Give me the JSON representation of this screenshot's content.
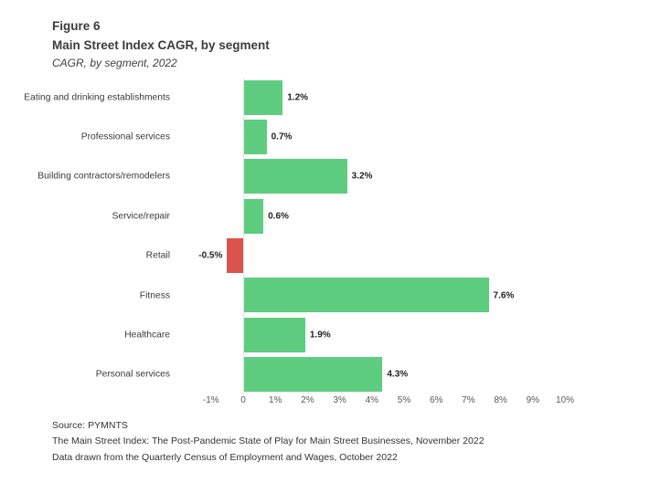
{
  "header": {
    "figure_label": "Figure 6",
    "title": "Main Street Index CAGR, by segment",
    "subtitle": "CAGR, by segment, 2022"
  },
  "chart_data": {
    "type": "bar",
    "orientation": "horizontal",
    "title": "Main Street Index CAGR, by segment",
    "subtitle": "CAGR, by segment, 2022",
    "categories": [
      "Eating and drinking establishments",
      "Professional services",
      "Building contractors/remodelers",
      "Service/repair",
      "Retail",
      "Fitness",
      "Healthcare",
      "Personal services"
    ],
    "values": [
      1.2,
      0.7,
      3.2,
      0.6,
      -0.5,
      7.6,
      1.9,
      4.3
    ],
    "value_labels": [
      "1.2%",
      "0.7%",
      "3.2%",
      "0.6%",
      "-0.5%",
      "7.6%",
      "1.9%",
      "4.3%"
    ],
    "x_ticks": [
      {
        "value": -1,
        "label": "-1%"
      },
      {
        "value": 0,
        "label": "0"
      },
      {
        "value": 1,
        "label": "1%"
      },
      {
        "value": 2,
        "label": "2%"
      },
      {
        "value": 3,
        "label": "3%"
      },
      {
        "value": 4,
        "label": "4%"
      },
      {
        "value": 5,
        "label": "5%"
      },
      {
        "value": 6,
        "label": "6%"
      },
      {
        "value": 7,
        "label": "7%"
      },
      {
        "value": 8,
        "label": "8%"
      },
      {
        "value": 9,
        "label": "9%"
      },
      {
        "value": 10,
        "label": "10%"
      }
    ],
    "xlim": [
      -1,
      10
    ],
    "grid": false,
    "positive_color": "#5ecd80",
    "negative_color": "#d9534f"
  },
  "footer": {
    "lines": [
      "Source: PYMNTS",
      "The Main Street Index: The Post-Pandemic State of Play for Main Street Businesses, November 2022",
      "Data drawn from the Quarterly Census of Employment and Wages, October 2022"
    ]
  }
}
